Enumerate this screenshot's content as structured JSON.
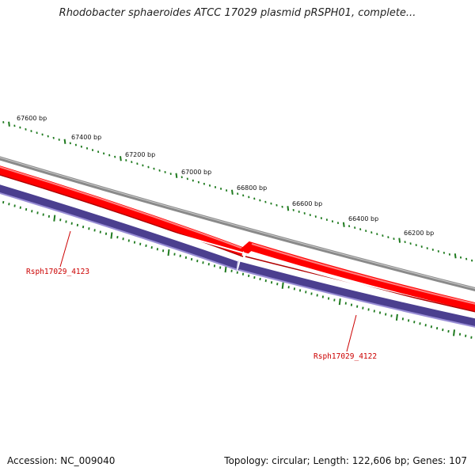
{
  "title": "Rhodobacter sphaeroides ATCC 17029 plasmid pRSPH01, complete...",
  "footer": {
    "accession": "Accession: NC_009040",
    "summary": "Topology: circular; Length: 122,606 bp; Genes: 107"
  },
  "ruler": {
    "labels": [
      "67600 bp",
      "67400 bp",
      "67200 bp",
      "67000 bp",
      "66800 bp",
      "66600 bp",
      "66400 bp",
      "66200 bp"
    ]
  },
  "genes": [
    {
      "name": "Rsph17029_4123",
      "strand": "forward-and-reverse",
      "color": "#ff0000"
    },
    {
      "name": "Rsph17029_4122",
      "strand": "forward-and-reverse",
      "color": "#4b3f8f"
    }
  ],
  "colors": {
    "forward_track": "#ff0000",
    "reverse_track": "#4b3f8f",
    "backbone": "#8a8a8a",
    "ticks": "#1e7a1e",
    "gene_label": "#cc0000"
  }
}
